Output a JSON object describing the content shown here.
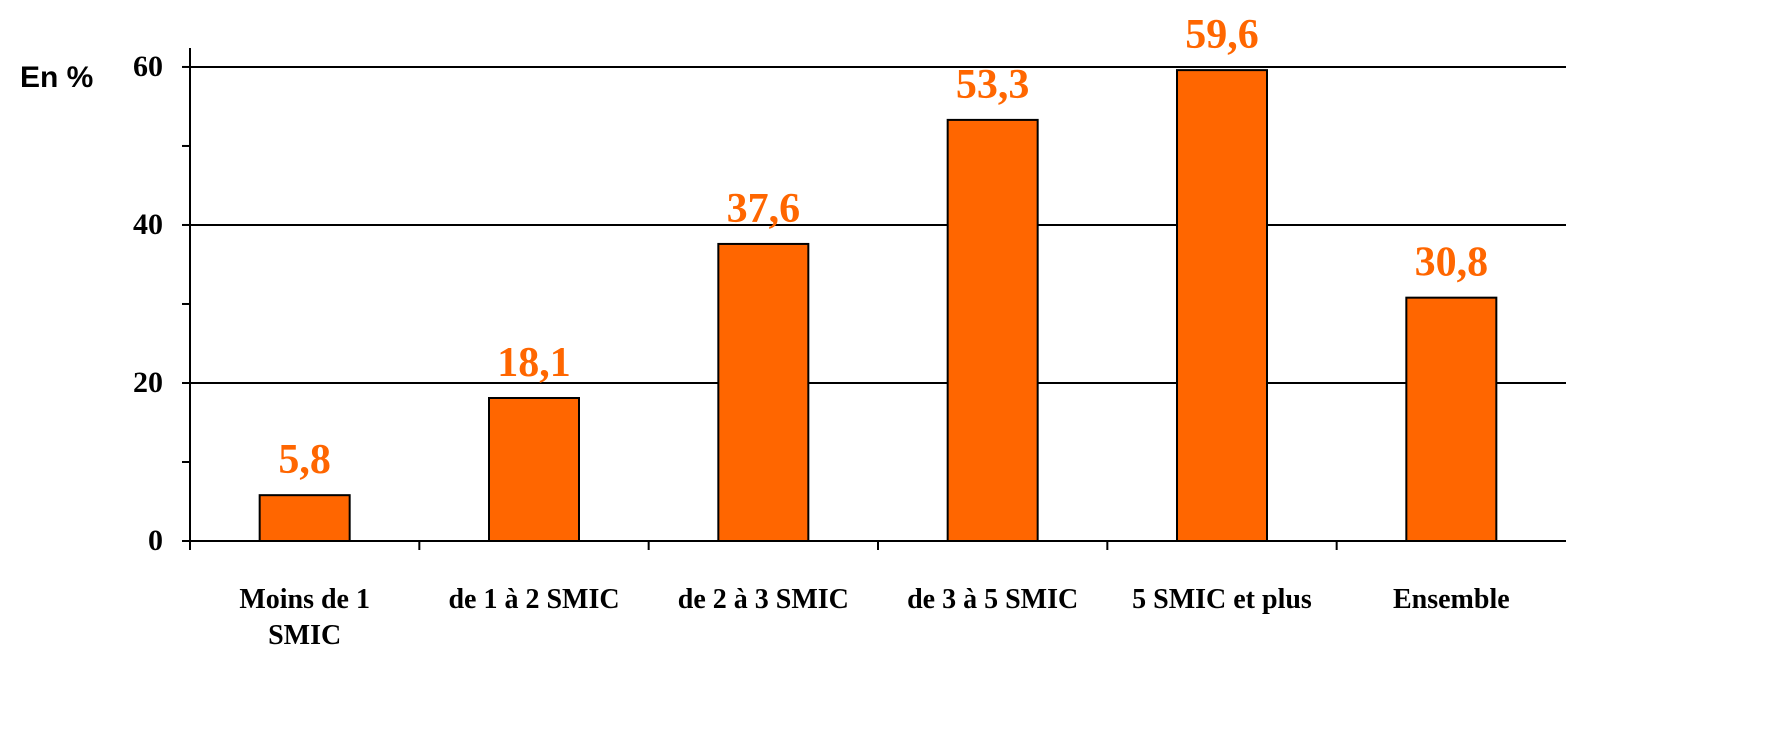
{
  "chart_data": {
    "type": "bar",
    "y_axis_label": "En %",
    "categories": [
      "Moins de 1 SMIC",
      "de 1 à 2 SMIC",
      "de 2 à 3 SMIC",
      "de 3 à 5 SMIC",
      "5 SMIC et plus",
      "Ensemble"
    ],
    "values": [
      5.8,
      18.1,
      37.6,
      53.3,
      59.6,
      30.8
    ],
    "value_labels": [
      "5,8",
      "18,1",
      "37,6",
      "53,3",
      "59,6",
      "30,8"
    ],
    "color": "#ff6600",
    "label_color": "#ff6600",
    "ylim": [
      0,
      62.4
    ],
    "yticks": [
      0,
      20,
      40,
      60
    ],
    "yminorticks": [
      10,
      30,
      50
    ],
    "grid": true
  }
}
